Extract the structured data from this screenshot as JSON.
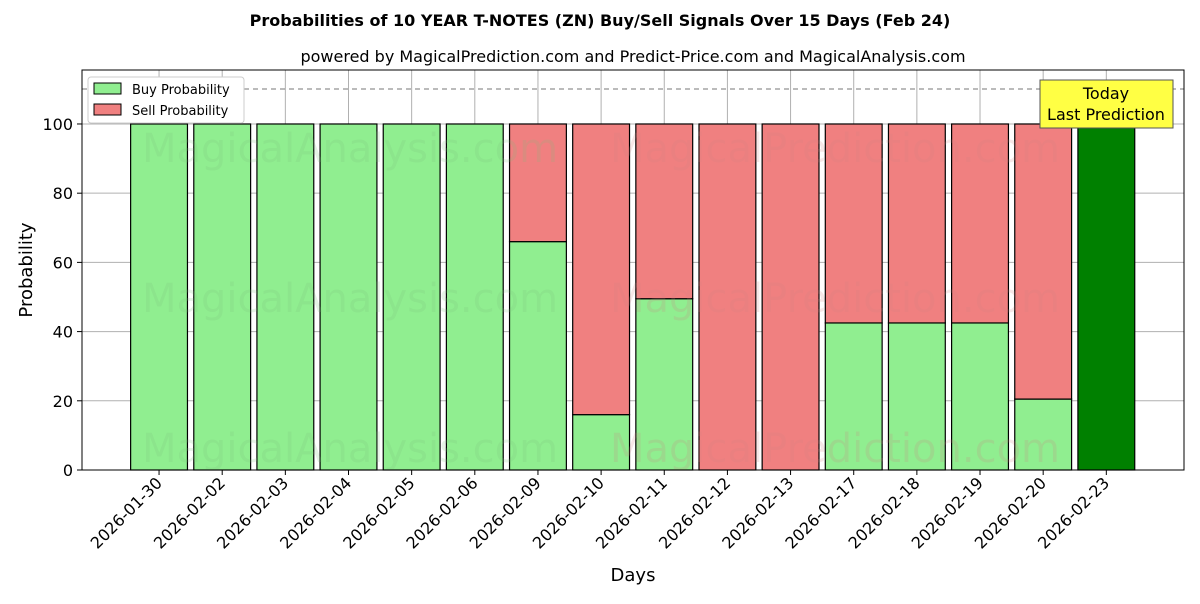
{
  "chart_data": {
    "type": "bar",
    "stacked": true,
    "title": "Probabilities of 10 YEAR T-NOTES (ZN) Buy/Sell Signals Over 15 Days (Feb 24)",
    "subtitle": "powered by MagicalPrediction.com and Predict-Price.com and MagicalAnalysis.com",
    "xlabel": "Days",
    "ylabel": "Probability",
    "ylim": [
      0,
      115.6
    ],
    "yticks": [
      0,
      20,
      40,
      60,
      80,
      100
    ],
    "grid": true,
    "legend_placement": "top-left",
    "categories": [
      "2026-01-30",
      "2026-02-02",
      "2026-02-03",
      "2026-02-04",
      "2026-02-05",
      "2026-02-06",
      "2026-02-09",
      "2026-02-10",
      "2026-02-11",
      "2026-02-12",
      "2026-02-13",
      "2026-02-17",
      "2026-02-18",
      "2026-02-19",
      "2026-02-20",
      "2026-02-23"
    ],
    "series": [
      {
        "name": "Buy Probability",
        "color": "#90ee90",
        "values": [
          100,
          100,
          100,
          100,
          100,
          100,
          66,
          16,
          49.5,
          0,
          0,
          42.5,
          42.5,
          42.5,
          20.5,
          100
        ]
      },
      {
        "name": "Sell Probability",
        "color": "#f08080",
        "values": [
          0,
          0,
          0,
          0,
          0,
          0,
          34,
          84,
          50.5,
          100,
          100,
          57.5,
          57.5,
          57.5,
          79.5,
          0
        ]
      }
    ],
    "today_color": "#008000",
    "reference_line": 110,
    "annotation": {
      "line1": "Today",
      "line2": "Last Prediction",
      "color": "#ffff44"
    },
    "watermarks": [
      "MagicalAnalysis.com",
      "MagicalPrediction.com"
    ]
  }
}
